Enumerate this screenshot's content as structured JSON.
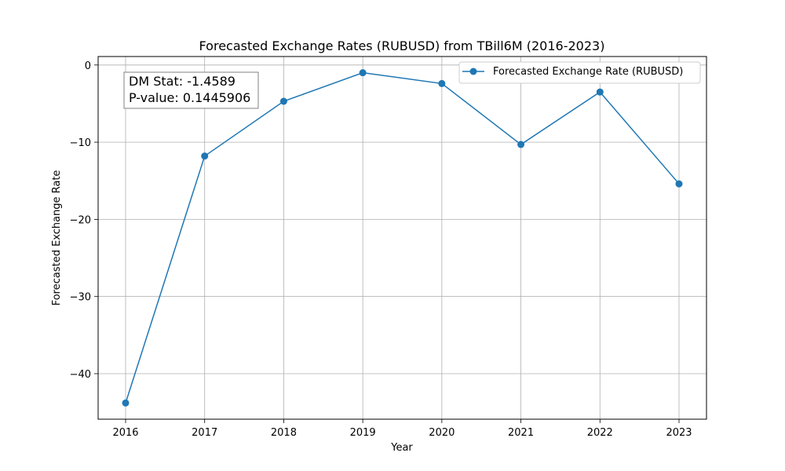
{
  "chart_data": {
    "type": "line",
    "title": "Forecasted Exchange Rates (RUBUSD) from TBill6M (2016-2023)",
    "xlabel": "Year",
    "ylabel": "Forecasted Exchange Rate",
    "x": [
      "2016",
      "2017",
      "2018",
      "2019",
      "2020",
      "2021",
      "2022",
      "2023"
    ],
    "series": [
      {
        "name": "Forecasted Exchange Rate (RUBUSD)",
        "values": [
          -43.8,
          -11.8,
          -4.7,
          -1.0,
          -2.4,
          -10.3,
          -3.5,
          -15.4
        ],
        "color": "#1f77b4"
      }
    ],
    "ylim": [
      -45.9,
      1.1
    ],
    "yticks": [
      0,
      -10,
      -20,
      -30,
      -40
    ],
    "ytick_labels": [
      "0",
      "−10",
      "−20",
      "−30",
      "−40"
    ],
    "grid": true,
    "legend_position": "top-right",
    "annotation": {
      "line1": "DM Stat: -1.4589",
      "line2": "P-value: 0.1445906"
    }
  }
}
